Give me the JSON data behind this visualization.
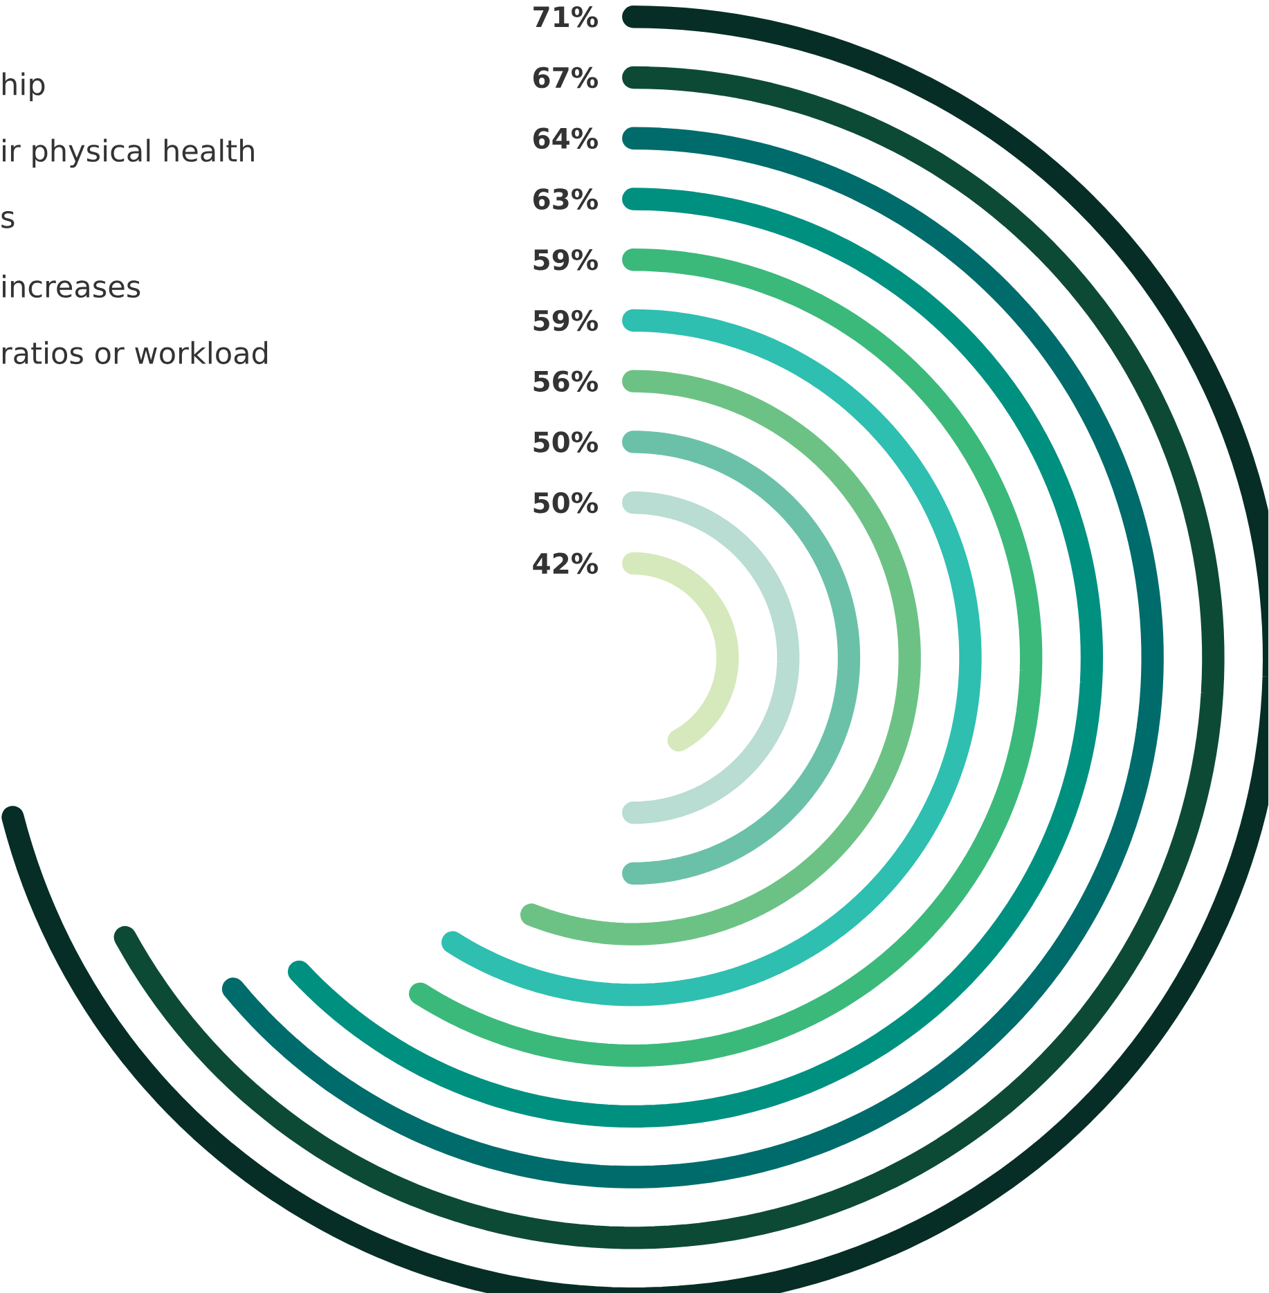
{
  "chart_data": {
    "type": "other",
    "categories": [
      null,
      null,
      null,
      null,
      null,
      null,
      null,
      null,
      null,
      null
    ],
    "values": [
      71,
      67,
      64,
      63,
      59,
      59,
      56,
      50,
      50,
      42
    ],
    "value_labels": [
      "71%",
      "67%",
      "64%",
      "63%",
      "59%",
      "59%",
      "56%",
      "50%",
      "50%",
      "42%"
    ],
    "colors": [
      "#062e26",
      "#0d4a35",
      "#006b6b",
      "#009080",
      "#3bb97a",
      "#2ebfb0",
      "#6cc285",
      "#6bc1a8",
      "#b9dcd3",
      "#d6e9bd"
    ],
    "annotations": [
      "hip",
      "ir physical health",
      "s",
      "increases",
      "ratios or workload"
    ]
  }
}
